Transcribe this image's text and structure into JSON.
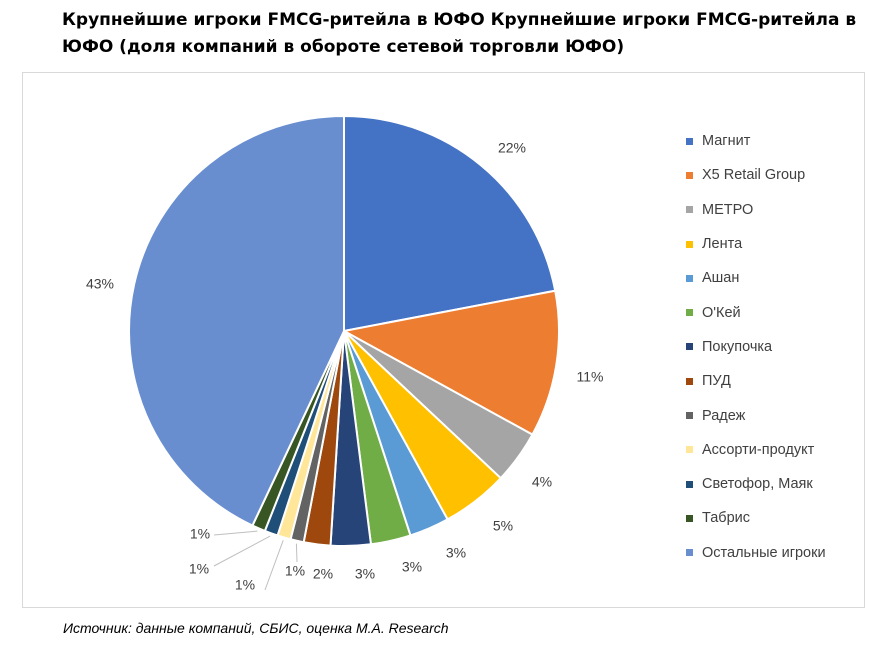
{
  "chart_data": {
    "type": "pie",
    "title": "Крупнейшие игроки FMCG-ритейла в ЮФО Крупнейшие игроки FMCG-ритейла в ЮФО (доля компаний в обороте сетевой торговли ЮФО)",
    "legend_position": "right",
    "start_angle_deg": 0,
    "direction": "clockwise",
    "slices": [
      {
        "label": "Магнит",
        "value": 22,
        "value_label": "22%",
        "color": "#4472C4"
      },
      {
        "label": "X5 Retail Group",
        "value": 11,
        "value_label": "11%",
        "color": "#ED7D31"
      },
      {
        "label": "МЕТРО",
        "value": 4,
        "value_label": "4%",
        "color": "#A5A5A5"
      },
      {
        "label": "Лента",
        "value": 5,
        "value_label": "5%",
        "color": "#FFC000"
      },
      {
        "label": "Ашан",
        "value": 3,
        "value_label": "3%",
        "color": "#5B9BD5"
      },
      {
        "label": "О'Кей",
        "value": 3,
        "value_label": "3%",
        "color": "#70AD47"
      },
      {
        "label": "Покупочка",
        "value": 3,
        "value_label": "3%",
        "color": "#264478"
      },
      {
        "label": "ПУД",
        "value": 2,
        "value_label": "2%",
        "color": "#9E480E"
      },
      {
        "label": "Радеж",
        "value": 1,
        "value_label": "1%",
        "color": "#636363"
      },
      {
        "label": "Ассорти-продукт",
        "value": 1,
        "value_label": "1%",
        "color": "#FFE699"
      },
      {
        "label": "Светофор, Маяк",
        "value": 1,
        "value_label": "1%",
        "color": "#1F4E79"
      },
      {
        "label": "Табрис",
        "value": 1,
        "value_label": "1%",
        "color": "#375623"
      },
      {
        "label": "Остальные игроки",
        "value": 43,
        "value_label": "43%",
        "color": "#698ED0"
      }
    ]
  },
  "source": "Источник: данные компаний, СБИС, оценка M.A. Research"
}
